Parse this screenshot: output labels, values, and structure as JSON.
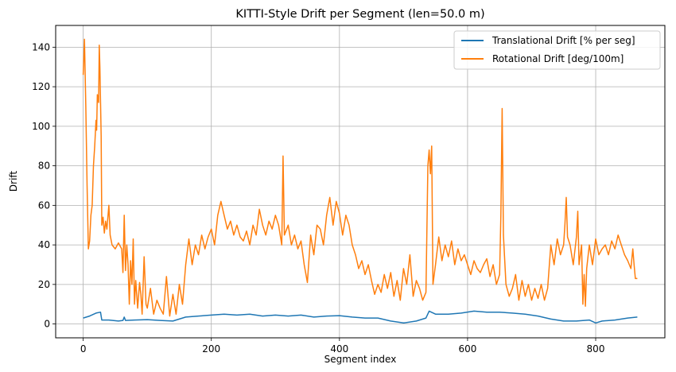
{
  "chart_data": {
    "type": "line",
    "title": "KITTI-Style Drift per Segment (len=50.0 m)",
    "xlabel": "Segment index",
    "ylabel": "Drift",
    "xlim": [
      -43,
      908
    ],
    "ylim": [
      -7,
      151
    ],
    "xticks": [
      0,
      200,
      400,
      600,
      800
    ],
    "yticks": [
      0,
      20,
      40,
      60,
      80,
      100,
      120,
      140
    ],
    "grid": true,
    "legend_position": "top-right",
    "series": [
      {
        "name": "Translational Drift [% per seg]",
        "color": "#1f77b4",
        "points": [
          [
            0,
            3
          ],
          [
            10,
            4
          ],
          [
            20,
            5.5
          ],
          [
            27,
            6
          ],
          [
            29,
            2
          ],
          [
            40,
            2
          ],
          [
            55,
            1.5
          ],
          [
            62,
            1.8
          ],
          [
            64,
            3.5
          ],
          [
            66,
            1.8
          ],
          [
            80,
            2
          ],
          [
            100,
            2.2
          ],
          [
            120,
            1.8
          ],
          [
            140,
            1.5
          ],
          [
            160,
            3.5
          ],
          [
            180,
            4
          ],
          [
            200,
            4.5
          ],
          [
            220,
            5
          ],
          [
            240,
            4.5
          ],
          [
            260,
            5
          ],
          [
            280,
            4
          ],
          [
            300,
            4.5
          ],
          [
            320,
            4
          ],
          [
            340,
            4.5
          ],
          [
            360,
            3.5
          ],
          [
            380,
            4
          ],
          [
            400,
            4.2
          ],
          [
            420,
            3.5
          ],
          [
            440,
            3
          ],
          [
            460,
            3
          ],
          [
            480,
            1.5
          ],
          [
            500,
            0.5
          ],
          [
            520,
            1.5
          ],
          [
            535,
            3
          ],
          [
            540,
            6.5
          ],
          [
            550,
            5
          ],
          [
            570,
            5
          ],
          [
            590,
            5.5
          ],
          [
            610,
            6.5
          ],
          [
            630,
            6
          ],
          [
            650,
            6
          ],
          [
            670,
            5.5
          ],
          [
            690,
            5
          ],
          [
            710,
            4
          ],
          [
            730,
            2.5
          ],
          [
            750,
            1.5
          ],
          [
            770,
            1.5
          ],
          [
            790,
            2
          ],
          [
            800,
            0.5
          ],
          [
            810,
            1.5
          ],
          [
            830,
            2
          ],
          [
            850,
            3
          ],
          [
            865,
            3.5
          ]
        ]
      },
      {
        "name": "Rotational Drift [deg/100m]",
        "color": "#ff7f0e",
        "points": [
          [
            0,
            126
          ],
          [
            2,
            144
          ],
          [
            4,
            110
          ],
          [
            6,
            70
          ],
          [
            8,
            38
          ],
          [
            10,
            42
          ],
          [
            12,
            55
          ],
          [
            14,
            60
          ],
          [
            16,
            80
          ],
          [
            18,
            90
          ],
          [
            20,
            103
          ],
          [
            21,
            98
          ],
          [
            22,
            116
          ],
          [
            24,
            112
          ],
          [
            25,
            141
          ],
          [
            26,
            130
          ],
          [
            28,
            95
          ],
          [
            29,
            50
          ],
          [
            31,
            54
          ],
          [
            33,
            46
          ],
          [
            35,
            52
          ],
          [
            37,
            48
          ],
          [
            40,
            60
          ],
          [
            42,
            45
          ],
          [
            45,
            40
          ],
          [
            50,
            38
          ],
          [
            55,
            41
          ],
          [
            60,
            38
          ],
          [
            62,
            26
          ],
          [
            64,
            55
          ],
          [
            66,
            27
          ],
          [
            68,
            40
          ],
          [
            70,
            30
          ],
          [
            72,
            10
          ],
          [
            74,
            32
          ],
          [
            76,
            20
          ],
          [
            78,
            43
          ],
          [
            80,
            10
          ],
          [
            82,
            22
          ],
          [
            85,
            8
          ],
          [
            88,
            21
          ],
          [
            90,
            15
          ],
          [
            92,
            5
          ],
          [
            95,
            34
          ],
          [
            98,
            10
          ],
          [
            100,
            8
          ],
          [
            105,
            18
          ],
          [
            110,
            5
          ],
          [
            115,
            12
          ],
          [
            120,
            8
          ],
          [
            125,
            5
          ],
          [
            130,
            24
          ],
          [
            135,
            4
          ],
          [
            140,
            15
          ],
          [
            145,
            5
          ],
          [
            150,
            20
          ],
          [
            155,
            10
          ],
          [
            160,
            30
          ],
          [
            165,
            43
          ],
          [
            170,
            30
          ],
          [
            175,
            40
          ],
          [
            180,
            35
          ],
          [
            185,
            45
          ],
          [
            190,
            38
          ],
          [
            195,
            44
          ],
          [
            200,
            48
          ],
          [
            205,
            40
          ],
          [
            210,
            55
          ],
          [
            215,
            62
          ],
          [
            220,
            55
          ],
          [
            225,
            48
          ],
          [
            230,
            52
          ],
          [
            235,
            45
          ],
          [
            240,
            50
          ],
          [
            245,
            44
          ],
          [
            250,
            42
          ],
          [
            255,
            47
          ],
          [
            260,
            40
          ],
          [
            265,
            50
          ],
          [
            270,
            45
          ],
          [
            275,
            58
          ],
          [
            280,
            50
          ],
          [
            285,
            45
          ],
          [
            290,
            52
          ],
          [
            295,
            48
          ],
          [
            300,
            55
          ],
          [
            305,
            50
          ],
          [
            310,
            40
          ],
          [
            312,
            85
          ],
          [
            314,
            45
          ],
          [
            320,
            50
          ],
          [
            325,
            40
          ],
          [
            330,
            45
          ],
          [
            335,
            38
          ],
          [
            340,
            42
          ],
          [
            345,
            30
          ],
          [
            350,
            21
          ],
          [
            355,
            45
          ],
          [
            360,
            35
          ],
          [
            365,
            50
          ],
          [
            370,
            48
          ],
          [
            375,
            40
          ],
          [
            380,
            55
          ],
          [
            385,
            64
          ],
          [
            390,
            50
          ],
          [
            395,
            62
          ],
          [
            400,
            56
          ],
          [
            405,
            45
          ],
          [
            410,
            55
          ],
          [
            415,
            50
          ],
          [
            420,
            40
          ],
          [
            425,
            35
          ],
          [
            430,
            28
          ],
          [
            435,
            32
          ],
          [
            440,
            25
          ],
          [
            445,
            30
          ],
          [
            450,
            22
          ],
          [
            455,
            15
          ],
          [
            460,
            20
          ],
          [
            465,
            16
          ],
          [
            470,
            25
          ],
          [
            475,
            18
          ],
          [
            480,
            26
          ],
          [
            485,
            14
          ],
          [
            490,
            22
          ],
          [
            495,
            12
          ],
          [
            500,
            28
          ],
          [
            505,
            20
          ],
          [
            510,
            35
          ],
          [
            515,
            14
          ],
          [
            520,
            22
          ],
          [
            525,
            18
          ],
          [
            530,
            12
          ],
          [
            535,
            16
          ],
          [
            538,
            80
          ],
          [
            540,
            88
          ],
          [
            542,
            76
          ],
          [
            544,
            90
          ],
          [
            546,
            20
          ],
          [
            550,
            30
          ],
          [
            555,
            44
          ],
          [
            560,
            32
          ],
          [
            565,
            40
          ],
          [
            570,
            34
          ],
          [
            575,
            42
          ],
          [
            580,
            30
          ],
          [
            585,
            38
          ],
          [
            590,
            32
          ],
          [
            595,
            35
          ],
          [
            600,
            30
          ],
          [
            605,
            25
          ],
          [
            610,
            32
          ],
          [
            615,
            28
          ],
          [
            620,
            26
          ],
          [
            625,
            30
          ],
          [
            630,
            33
          ],
          [
            635,
            24
          ],
          [
            640,
            30
          ],
          [
            645,
            20
          ],
          [
            650,
            25
          ],
          [
            652,
            55
          ],
          [
            654,
            109
          ],
          [
            656,
            45
          ],
          [
            660,
            20
          ],
          [
            665,
            14
          ],
          [
            670,
            18
          ],
          [
            675,
            25
          ],
          [
            680,
            12
          ],
          [
            685,
            22
          ],
          [
            690,
            14
          ],
          [
            695,
            20
          ],
          [
            700,
            12
          ],
          [
            705,
            18
          ],
          [
            710,
            13
          ],
          [
            715,
            20
          ],
          [
            720,
            12
          ],
          [
            725,
            18
          ],
          [
            730,
            40
          ],
          [
            735,
            30
          ],
          [
            740,
            43
          ],
          [
            745,
            35
          ],
          [
            750,
            40
          ],
          [
            752,
            50
          ],
          [
            754,
            64
          ],
          [
            756,
            44
          ],
          [
            760,
            40
          ],
          [
            765,
            30
          ],
          [
            770,
            44
          ],
          [
            772,
            57
          ],
          [
            774,
            30
          ],
          [
            778,
            40
          ],
          [
            780,
            10
          ],
          [
            782,
            25
          ],
          [
            784,
            9
          ],
          [
            786,
            28
          ],
          [
            790,
            40
          ],
          [
            795,
            30
          ],
          [
            800,
            43
          ],
          [
            805,
            35
          ],
          [
            810,
            38
          ],
          [
            815,
            40
          ],
          [
            820,
            35
          ],
          [
            825,
            42
          ],
          [
            830,
            38
          ],
          [
            835,
            45
          ],
          [
            840,
            40
          ],
          [
            845,
            35
          ],
          [
            850,
            32
          ],
          [
            855,
            28
          ],
          [
            858,
            38
          ],
          [
            860,
            30
          ],
          [
            862,
            23
          ],
          [
            865,
            23
          ]
        ]
      }
    ]
  }
}
